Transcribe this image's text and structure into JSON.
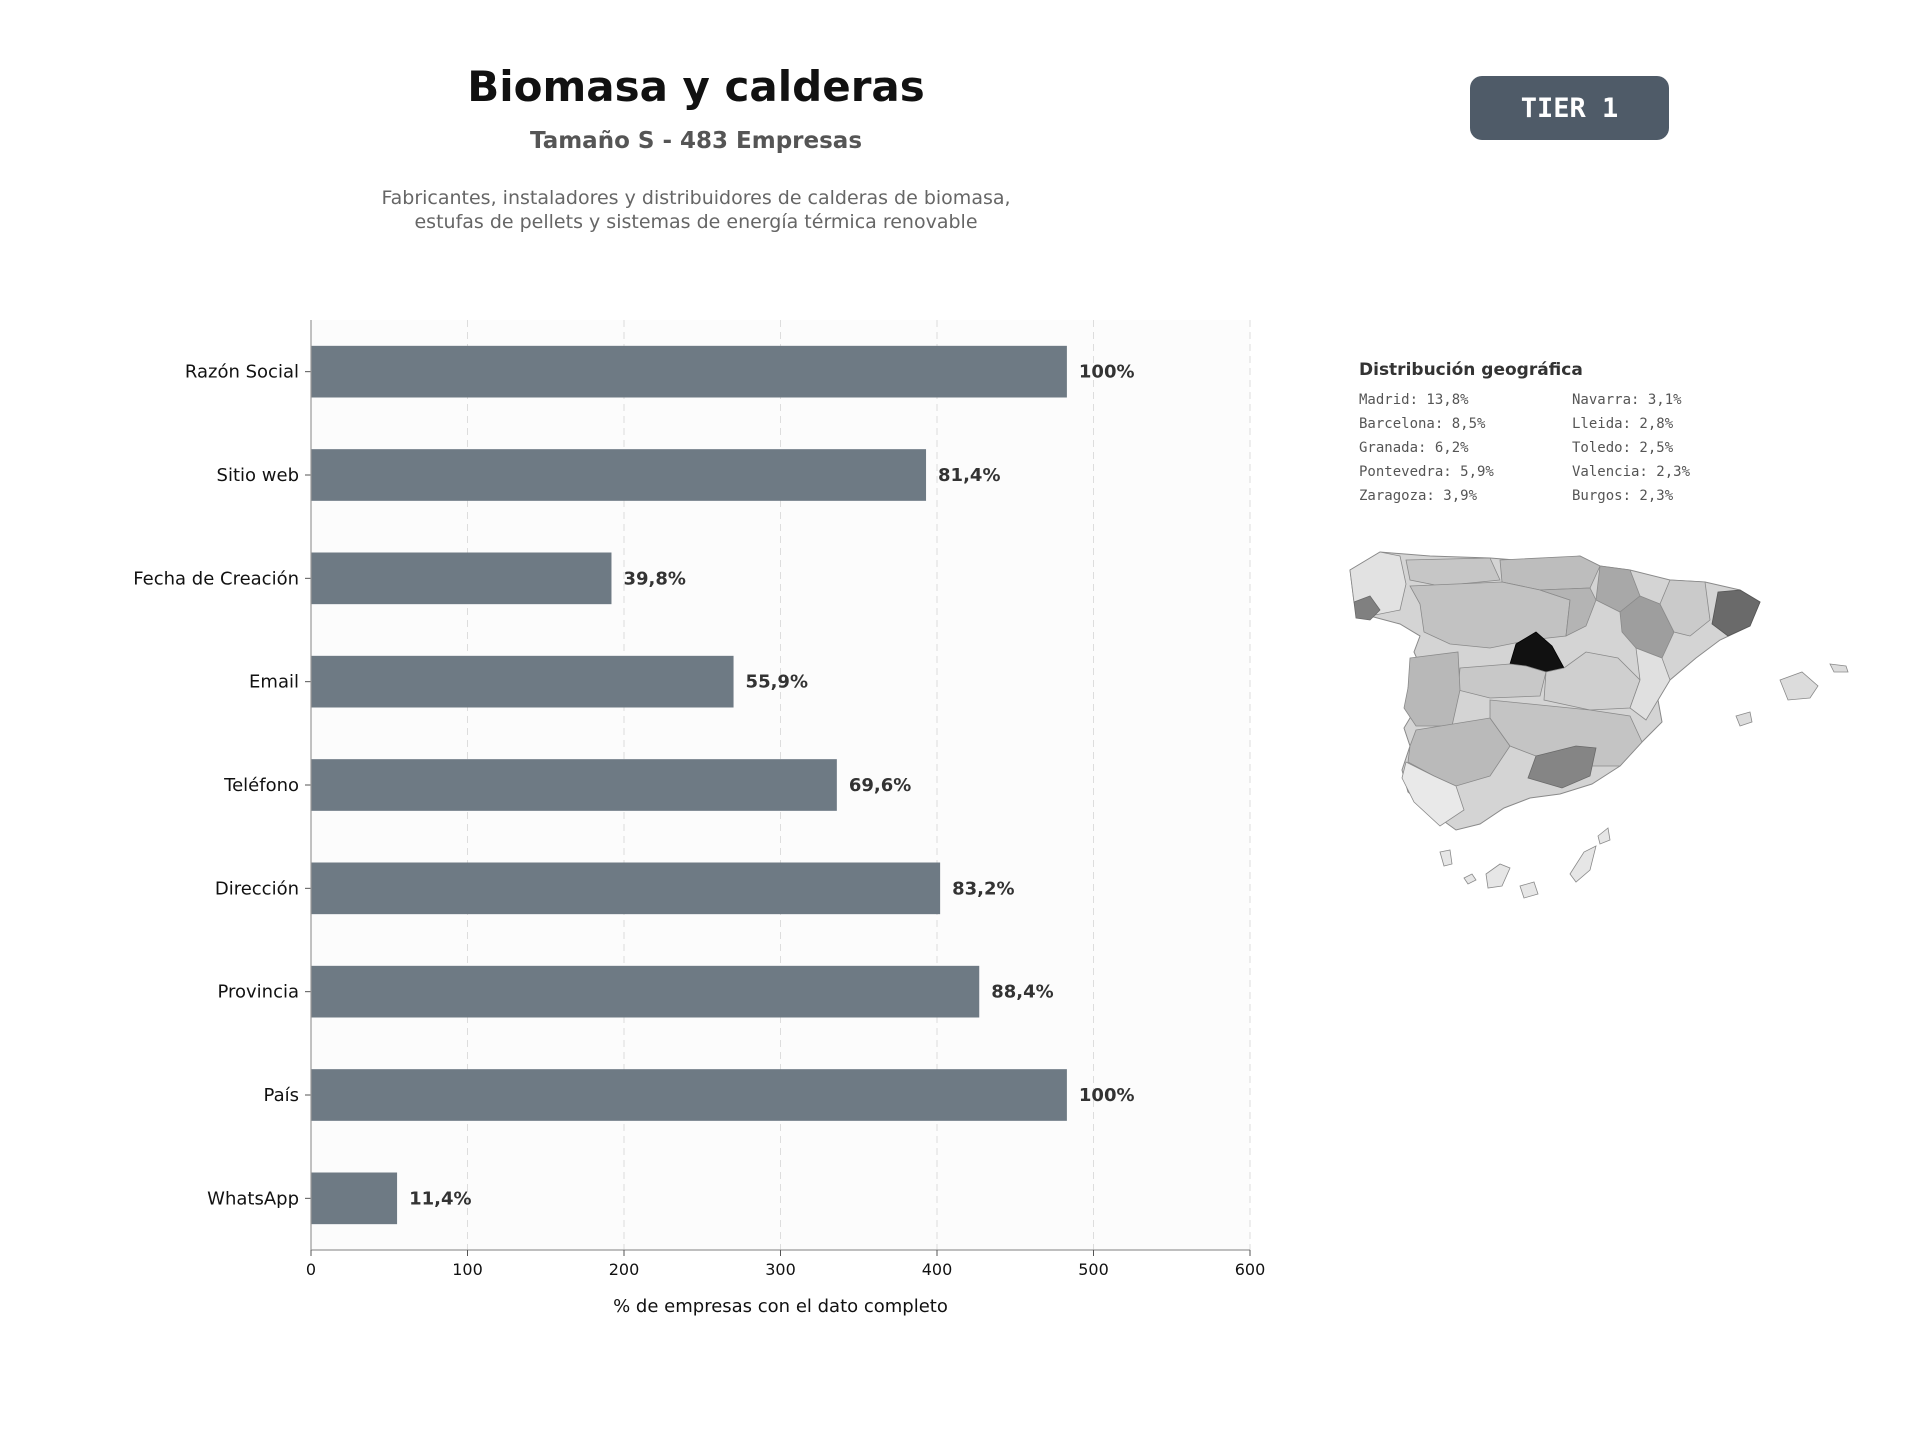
{
  "header": {
    "title": "Biomasa y calderas",
    "subtitle": "Tamaño S - 483 Empresas",
    "description_line1": "Fabricantes, instaladores y distribuidores de calderas de biomasa,",
    "description_line2": "estufas de pellets y sistemas de energía térmica renovable",
    "tier_label": "TIER 1"
  },
  "chart_data": {
    "type": "bar",
    "orientation": "horizontal",
    "categories": [
      "Razón Social",
      "Sitio web",
      "Fecha de Creación",
      "Email",
      "Teléfono",
      "Dirección",
      "Provincia",
      "País",
      "WhatsApp"
    ],
    "values": [
      483,
      393,
      192,
      270,
      336,
      402,
      427,
      483,
      55
    ],
    "data_labels": [
      "100%",
      "81,4%",
      "39,8%",
      "55,9%",
      "69,6%",
      "83,2%",
      "88,4%",
      "100%",
      "11,4%"
    ],
    "xlabel": "% de empresas con el dato completo",
    "ylabel": "",
    "xlim": [
      0,
      600
    ],
    "xticks": [
      0,
      100,
      200,
      300,
      400,
      500,
      600
    ],
    "grid": "vertical dashed",
    "bar_color": "#6e7a84"
  },
  "geo": {
    "title": "Distribución geográfica",
    "items": [
      "Madrid: 13,8%",
      "Navarra: 3,1%",
      "Barcelona: 8,5%",
      "Lleida: 2,8%",
      "Granada: 6,2%",
      "Toledo: 2,5%",
      "Pontevedra: 5,9%",
      "Valencia: 2,3%",
      "Zaragoza: 3,9%",
      "Burgos: 2,3%"
    ]
  }
}
